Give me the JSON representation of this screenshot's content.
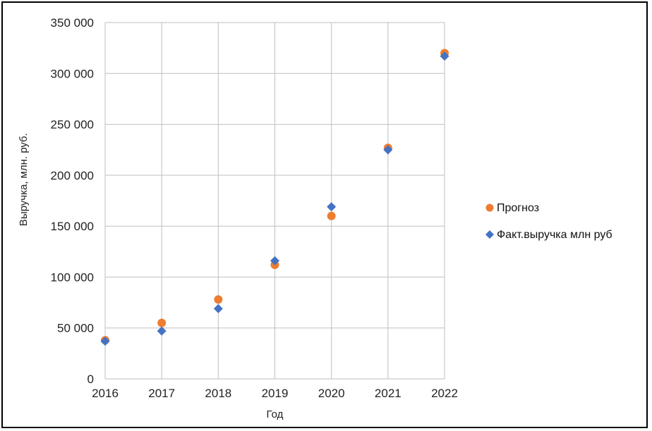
{
  "chart_data": {
    "type": "scatter",
    "title": "",
    "xlabel": "Год",
    "ylabel": "Выручка, млн. руб.",
    "x": [
      2016,
      2017,
      2018,
      2019,
      2020,
      2021,
      2022
    ],
    "xlim": [
      2016,
      2022
    ],
    "ylim": [
      0,
      350000
    ],
    "xticks": [
      "2016",
      "2017",
      "2018",
      "2019",
      "2020",
      "2021",
      "2022"
    ],
    "yticks": [
      {
        "value": 0,
        "label": "0"
      },
      {
        "value": 50000,
        "label": "50 000"
      },
      {
        "value": 100000,
        "label": "100 000"
      },
      {
        "value": 150000,
        "label": "150 000"
      },
      {
        "value": 200000,
        "label": "200 000"
      },
      {
        "value": 250000,
        "label": "250 000"
      },
      {
        "value": 300000,
        "label": "300 000"
      },
      {
        "value": 350000,
        "label": "350 000"
      }
    ],
    "grid": "horizontal and vertical",
    "legend_position": "right",
    "series": [
      {
        "name": "Прогноз",
        "marker": "circle",
        "color": "#ED7D31",
        "values": [
          38000,
          55000,
          78000,
          112000,
          160000,
          227000,
          320000
        ]
      },
      {
        "name": "Факт.выручка млн руб",
        "marker": "diamond",
        "color": "#4472C4",
        "values": [
          37000,
          47000,
          69000,
          116000,
          169000,
          225000,
          317000
        ]
      }
    ]
  }
}
